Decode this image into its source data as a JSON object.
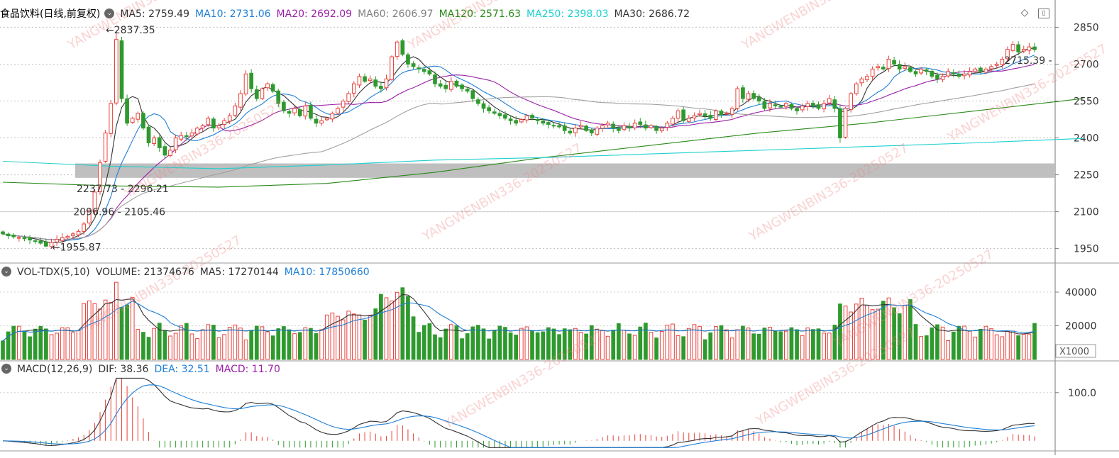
{
  "main_header": {
    "title": "食品饮料(日线,前复权)",
    "indicators": [
      {
        "label": "MA5: 2759.49",
        "color": "#333333"
      },
      {
        "label": "MA10: 2731.06",
        "color": "#1f7fd6"
      },
      {
        "label": "MA20: 2692.09",
        "color": "#9a1fa7"
      },
      {
        "label": "MA60: 2606.97",
        "color": "#808080"
      },
      {
        "label": "MA120: 2571.63",
        "color": "#2a8a1a"
      },
      {
        "label": "MA250: 2398.03",
        "color": "#1fcfcf"
      },
      {
        "label": "MA30: 2686.72",
        "color": "#333333"
      }
    ]
  },
  "vol_header": {
    "name": "VOL-TDX(5,10)",
    "indicators": [
      {
        "label": "VOLUME: 21374676",
        "color": "#333333"
      },
      {
        "label": "MA5: 17270144",
        "color": "#333333"
      },
      {
        "label": "MA10: 17850660",
        "color": "#1f7fd6"
      }
    ]
  },
  "macd_header": {
    "name": "MACD(12,26,9)",
    "indicators": [
      {
        "label": "DIF: 38.36",
        "color": "#333333"
      },
      {
        "label": "DEA: 32.51",
        "color": "#1f7fd6"
      },
      {
        "label": "MACD: 11.70",
        "color": "#9a1fa7"
      }
    ]
  },
  "icons": {
    "toolbar_diamond": "diamond-icon",
    "toolbar_panel": "panel-toggle-icon",
    "collapse": "collapse-chevron-icon"
  },
  "watermark": "YANGWENBIN336-20250527",
  "chart_data": [
    {
      "type": "candlestick",
      "title": "食品饮料(日线,前复权)",
      "ylim": [
        1900,
        2880
      ],
      "yticks": [
        1950,
        2100,
        2250,
        2400,
        2550,
        2700,
        2850
      ],
      "colors": {
        "up": "#e8403a",
        "down": "#2e9a2e"
      },
      "close": [
        2010,
        2002,
        1998,
        1995,
        1990,
        1985,
        1980,
        1972,
        1960,
        1975,
        1988,
        1995,
        2000,
        2010,
        2020,
        2050,
        2105,
        2180,
        2300,
        2420,
        2540,
        2800,
        2560,
        2460,
        2480,
        2500,
        2440,
        2380,
        2400,
        2360,
        2330,
        2350,
        2400,
        2410,
        2405,
        2420,
        2440,
        2450,
        2480,
        2440,
        2450,
        2470,
        2490,
        2530,
        2580,
        2660,
        2600,
        2560,
        2600,
        2620,
        2590,
        2540,
        2510,
        2500,
        2520,
        2490,
        2530,
        2480,
        2460,
        2470,
        2480,
        2500,
        2520,
        2550,
        2580,
        2620,
        2650,
        2630,
        2640,
        2610,
        2600,
        2640,
        2730,
        2790,
        2740,
        2700,
        2690,
        2680,
        2670,
        2660,
        2620,
        2610,
        2600,
        2630,
        2610,
        2600,
        2590,
        2560,
        2540,
        2520,
        2510,
        2500,
        2490,
        2480,
        2470,
        2460,
        2475,
        2490,
        2480,
        2470,
        2460,
        2455,
        2450,
        2445,
        2430,
        2420,
        2440,
        2450,
        2430,
        2420,
        2440,
        2450,
        2460,
        2440,
        2430,
        2450,
        2440,
        2460,
        2455,
        2440,
        2450,
        2430,
        2440,
        2460,
        2480,
        2510,
        2470,
        2480,
        2490,
        2500,
        2490,
        2480,
        2510,
        2495,
        2500,
        2520,
        2600,
        2560,
        2580,
        2560,
        2550,
        2520,
        2540,
        2530,
        2525,
        2540,
        2520,
        2510,
        2530,
        2540,
        2530,
        2520,
        2540,
        2560,
        2520,
        2400,
        2520,
        2580,
        2620,
        2640,
        2650,
        2680,
        2690,
        2680,
        2720,
        2700,
        2680,
        2690,
        2670,
        2660,
        2680,
        2670,
        2650,
        2640,
        2650,
        2670,
        2660,
        2650,
        2660,
        2670,
        2680,
        2670,
        2680,
        2690,
        2700,
        2720,
        2760,
        2780,
        2750,
        2760,
        2770,
        2759
      ],
      "ma_lines": [
        {
          "name": "MA5",
          "color": "#333333",
          "period": 5
        },
        {
          "name": "MA10",
          "color": "#1f7fd6",
          "period": 10
        },
        {
          "name": "MA20",
          "color": "#9a1fa7",
          "period": 20
        },
        {
          "name": "MA60",
          "color": "#a0a0a0",
          "period": 60
        },
        {
          "name": "MA120",
          "color": "#2a8a1a",
          "points": [
            [
              0,
              2220
            ],
            [
              20,
              2205
            ],
            [
              40,
              2200
            ],
            [
              60,
              2215
            ],
            [
              80,
              2260
            ],
            [
              100,
              2320
            ],
            [
              120,
              2370
            ],
            [
              140,
              2420
            ],
            [
              160,
              2460
            ],
            [
              180,
              2510
            ],
            [
              200,
              2560
            ]
          ]
        },
        {
          "name": "MA250",
          "color": "#1fcfcf",
          "points": [
            [
              0,
              2305
            ],
            [
              20,
              2285
            ],
            [
              40,
              2275
            ],
            [
              60,
              2290
            ],
            [
              80,
              2310
            ],
            [
              100,
              2320
            ],
            [
              120,
              2335
            ],
            [
              140,
              2350
            ],
            [
              160,
              2365
            ],
            [
              180,
              2380
            ],
            [
              200,
              2398
            ]
          ]
        }
      ],
      "band": {
        "from": 2237.73,
        "to": 2296.21,
        "label": "2237.73 - 2296.21"
      },
      "annotations": [
        {
          "label": "2837.35",
          "x": 18,
          "y": 2837.35,
          "side": "right"
        },
        {
          "label": "1955.87",
          "x": 8,
          "y": 1955.87,
          "side": "right"
        },
        {
          "label": "2096.96 - 2105.46",
          "x": 12,
          "y": 2101,
          "side": "right"
        },
        {
          "label": "2715.39 -",
          "x": 193,
          "y": 2715.39,
          "side": "left"
        }
      ]
    },
    {
      "type": "bar",
      "title": "VOL-TDX(5,10)",
      "unit": "X1000",
      "ylim": [
        0,
        48000
      ],
      "yticks": [
        20000,
        40000
      ],
      "series_ma": [
        {
          "name": "MA5",
          "color": "#333333"
        },
        {
          "name": "MA10",
          "color": "#1f7fd6"
        }
      ]
    },
    {
      "type": "bar",
      "title": "MACD(12,26,9)",
      "ylim": [
        -15,
        135
      ],
      "yticks": [
        100.0
      ],
      "series": [
        {
          "name": "DIF",
          "color": "#333333"
        },
        {
          "name": "DEA",
          "color": "#1f7fd6"
        },
        {
          "name": "MACD",
          "color": "#e8403a"
        }
      ]
    }
  ]
}
